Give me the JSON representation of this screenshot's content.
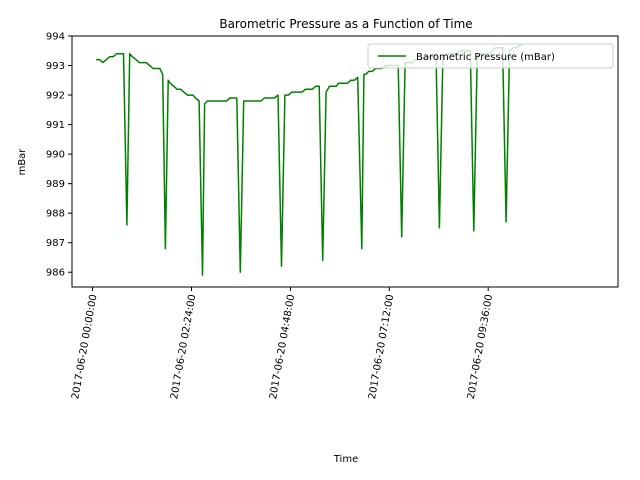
{
  "chart_data": {
    "type": "line",
    "title": "Barometric Pressure as a Function of Time",
    "xlabel": "Time",
    "ylabel": "mBar",
    "ylim": [
      985.5,
      994
    ],
    "xlim_minutes": [
      -30,
      765
    ],
    "yticks": [
      986,
      987,
      988,
      989,
      990,
      991,
      992,
      993,
      994
    ],
    "xticks": [
      {
        "minutes": 0,
        "label": "2017-06-20 00:00:00"
      },
      {
        "minutes": 144,
        "label": "2017-06-20 02:24:00"
      },
      {
        "minutes": 288,
        "label": "2017-06-20 04:48:00"
      },
      {
        "minutes": 432,
        "label": "2017-06-20 07:12:00"
      },
      {
        "minutes": 576,
        "label": "2017-06-20 09:36:00"
      }
    ],
    "legend_position": "top-right",
    "grid": false,
    "series": [
      {
        "name": "Barometric Pressure (mBar)",
        "color": "#008000",
        "x_minutes": [
          5,
          10,
          15,
          20,
          25,
          30,
          35,
          40,
          45,
          50,
          54,
          58,
          63,
          68,
          73,
          78,
          83,
          88,
          93,
          98,
          102,
          106,
          110,
          113,
          118,
          123,
          128,
          133,
          138,
          142,
          146,
          150,
          155,
          160,
          163,
          167,
          170,
          175,
          180,
          185,
          190,
          195,
          200,
          205,
          210,
          215,
          220,
          225,
          230,
          236,
          240,
          245,
          250,
          255,
          260,
          265,
          270,
          275,
          280,
          285,
          290,
          297,
          300,
          305,
          310,
          315,
          320,
          325,
          330,
          335,
          340,
          345,
          350,
          355,
          358,
          362,
          366,
          371,
          376,
          381,
          386,
          392,
          395,
          398,
          402,
          407,
          412,
          418,
          421,
          427,
          430,
          435,
          440,
          445,
          450,
          455,
          460,
          466,
          470,
          475,
          480,
          485,
          490,
          495,
          500,
          505,
          510,
          516,
          520,
          525,
          530,
          535,
          540,
          545,
          550,
          555,
          560,
          565,
          570,
          578,
          582,
          587,
          592,
          597,
          602,
          607,
          612,
          618,
          622,
          627
        ],
        "values": [
          993.2,
          993.2,
          993.1,
          993.2,
          993.3,
          993.3,
          993.4,
          993.4,
          993.4,
          987.6,
          993.4,
          993.3,
          993.2,
          993.1,
          993.1,
          993.1,
          993.0,
          992.9,
          992.9,
          992.9,
          992.7,
          986.8,
          992.5,
          992.4,
          992.3,
          992.2,
          992.2,
          992.1,
          992.0,
          992.0,
          992.0,
          991.9,
          991.8,
          985.9,
          991.7,
          991.8,
          991.8,
          991.8,
          991.8,
          991.8,
          991.8,
          991.8,
          991.9,
          991.9,
          991.9,
          986.0,
          991.8,
          991.8,
          991.8,
          991.8,
          991.8,
          991.8,
          991.9,
          991.9,
          991.9,
          991.9,
          992.0,
          986.2,
          992.0,
          992.0,
          992.1,
          992.1,
          992.1,
          992.1,
          992.2,
          992.2,
          992.2,
          992.3,
          992.3,
          986.4,
          992.1,
          992.3,
          992.3,
          992.3,
          992.4,
          992.4,
          992.4,
          992.4,
          992.5,
          992.5,
          992.6,
          986.8,
          992.7,
          992.7,
          992.8,
          992.8,
          992.9,
          992.9,
          992.9,
          993.0,
          993.0,
          993.0,
          993.0,
          993.0,
          987.2,
          993.1,
          993.1,
          993.1,
          993.2,
          993.2,
          993.2,
          993.3,
          993.3,
          993.3,
          993.4,
          987.5,
          993.3,
          993.4,
          993.4,
          993.4,
          993.4,
          993.5,
          993.5,
          993.5,
          993.5,
          987.4,
          993.3,
          993.4,
          993.4,
          993.4,
          993.5,
          993.6,
          993.6,
          993.6,
          987.7,
          993.5,
          993.6,
          993.6,
          993.7,
          993.7
        ]
      }
    ]
  }
}
